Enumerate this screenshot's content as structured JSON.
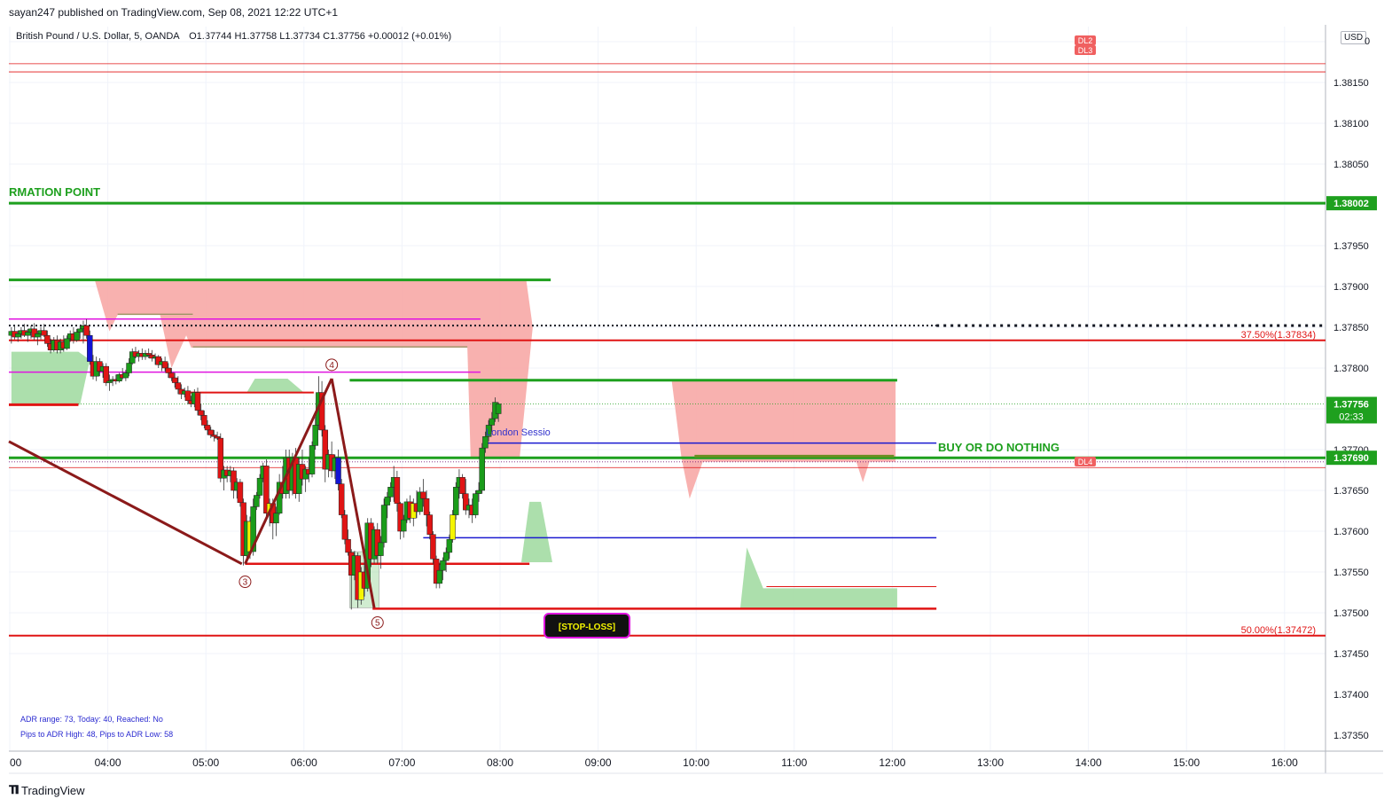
{
  "header": {
    "published": "sayan247 published on TradingView.com, Sep 08, 2021 12:22 UTC+1",
    "symbol": "British Pound / U.S. Dollar, 5, OANDA",
    "ohlc": "O1.37744  H1.37758  L1.37734  C1.37756  +0.00012 (+0.01%)"
  },
  "currency_badge": "USD",
  "footer": {
    "brand": "TradingView"
  },
  "adr": {
    "line1": "ADR range: 73, Today: 40, Reached: No",
    "line2": "Pips to ADR High: 48, Pips to ADR Low: 58"
  },
  "colors": {
    "up": "#1a9c1a",
    "down": "#e01414",
    "doji_yellow": "#f5f500",
    "doji_blue": "#1414d4",
    "green_line": "#1ea01e",
    "red_line": "#e01414",
    "pink_zone": "#f7a9a6",
    "green_zone": "#a3dba3",
    "magenta": "#e014e0",
    "blue_line": "#1a1ad0",
    "dark_red": "#8b1a1a"
  },
  "chart_data": {
    "type": "candlestick",
    "ylim": [
      1.3732,
      1.383
    ],
    "y_ticks": [
      "1.38150",
      "1.38100",
      "1.38050",
      "1.37950",
      "1.37900",
      "1.37850",
      "1.37800",
      "1.37700",
      "1.37650",
      "1.37600",
      "1.37550",
      "1.37500",
      "1.37450",
      "1.37400",
      "1.37350"
    ],
    "x_ticks": [
      {
        "label": "00",
        "t": 180
      },
      {
        "label": "04:00",
        "t": 240
      },
      {
        "label": "05:00",
        "t": 300
      },
      {
        "label": "06:00",
        "t": 360
      },
      {
        "label": "07:00",
        "t": 420
      },
      {
        "label": "08:00",
        "t": 480
      },
      {
        "label": "09:00",
        "t": 540
      },
      {
        "label": "10:00",
        "t": 600
      },
      {
        "label": "11:00",
        "t": 660
      },
      {
        "label": "12:00",
        "t": 720
      },
      {
        "label": "13:00",
        "t": 780
      },
      {
        "label": "14:00",
        "t": 840
      },
      {
        "label": "15:00",
        "t": 900
      },
      {
        "label": "16:00",
        "t": 960
      }
    ],
    "price_labels": [
      {
        "text": "1.38002",
        "price": 1.38002,
        "bg": "#1ea01e",
        "fg": "#ffffff"
      },
      {
        "text": "1.37756",
        "sub": "02:33",
        "price": 1.37756,
        "bg": "#1ea01e",
        "fg": "#ffffff"
      },
      {
        "text": "1.37690",
        "price": 1.3769,
        "bg": "#1ea01e",
        "fg": "#ffffff"
      }
    ],
    "annotations": {
      "confirmation": "RMATION POINT",
      "buy": "BUY OR DO NOTHING",
      "stoploss": "[STOP-LOSS]",
      "london": "London Sessio",
      "fib_375": "37.50%(1.37834)",
      "fib_50": "50.00%(1.37472)",
      "wave3": "3",
      "wave4": "4",
      "wave5": "5",
      "dl2": "DL2",
      "dl3": "DL3",
      "dl4": "DL4",
      "top_partial": "0"
    },
    "candles": [
      [
        181,
        1.3784,
        1.3785,
        1.3783,
        1.37845
      ],
      [
        183,
        1.37845,
        1.37852,
        1.37835,
        1.37838
      ],
      [
        185,
        1.37838,
        1.37846,
        1.37832,
        1.37842
      ],
      [
        187,
        1.37842,
        1.3785,
        1.37836,
        1.37846
      ],
      [
        189,
        1.37846,
        1.37854,
        1.37838,
        1.3784
      ],
      [
        191,
        1.3784,
        1.37848,
        1.37832,
        1.37844
      ],
      [
        193,
        1.37844,
        1.37852,
        1.37836,
        1.37848
      ],
      [
        195,
        1.37848,
        1.37855,
        1.37834,
        1.37838
      ],
      [
        197,
        1.37838,
        1.37846,
        1.37828,
        1.37842
      ],
      [
        199,
        1.37842,
        1.3785,
        1.37835,
        1.37846
      ],
      [
        201,
        1.37846,
        1.37854,
        1.37838,
        1.3784
      ],
      [
        203,
        1.3784,
        1.37846,
        1.37826,
        1.3783
      ],
      [
        205,
        1.3783,
        1.37836,
        1.37818,
        1.37822
      ],
      [
        207,
        1.37822,
        1.37838,
        1.3782,
        1.37834
      ],
      [
        209,
        1.37834,
        1.3784,
        1.37818,
        1.37822
      ],
      [
        211,
        1.37822,
        1.37836,
        1.37818,
        1.37832
      ],
      [
        213,
        1.37832,
        1.3784,
        1.3782,
        1.37824
      ],
      [
        215,
        1.37824,
        1.3784,
        1.37822,
        1.37836
      ],
      [
        217,
        1.37836,
        1.37846,
        1.37832,
        1.37842
      ],
      [
        219,
        1.37842,
        1.3785,
        1.3783,
        1.37834
      ],
      [
        221,
        1.37834,
        1.37848,
        1.37832,
        1.37844
      ],
      [
        223,
        1.37844,
        1.37852,
        1.37836,
        1.37848
      ],
      [
        225,
        1.37848,
        1.37858,
        1.3783,
        1.37852
      ],
      [
        227,
        1.37852,
        1.3786,
        1.37836,
        1.3784
      ],
      [
        229,
        1.3784,
        1.37846,
        1.37804,
        1.37808
      ],
      [
        231,
        1.37808,
        1.37816,
        1.37786,
        1.3779
      ],
      [
        233,
        1.3779,
        1.37814,
        1.37784,
        1.37808
      ],
      [
        235,
        1.37808,
        1.37812,
        1.3779,
        1.37796
      ],
      [
        237,
        1.37796,
        1.37806,
        1.37788,
        1.37802
      ],
      [
        239,
        1.37802,
        1.37806,
        1.37778,
        1.37782
      ],
      [
        241,
        1.37782,
        1.37792,
        1.37772,
        1.37784
      ],
      [
        243,
        1.37784,
        1.3779,
        1.37778,
        1.37786
      ],
      [
        245,
        1.37786,
        1.37792,
        1.3778,
        1.37784
      ],
      [
        247,
        1.37784,
        1.37794,
        1.37782,
        1.37792
      ],
      [
        249,
        1.37792,
        1.378,
        1.37786,
        1.37788
      ],
      [
        251,
        1.37788,
        1.37798,
        1.37784,
        1.37794
      ],
      [
        253,
        1.37794,
        1.37812,
        1.3779,
        1.37806
      ],
      [
        255,
        1.37806,
        1.37824,
        1.37804,
        1.3782
      ],
      [
        257,
        1.3782,
        1.37826,
        1.37812,
        1.37814
      ],
      [
        259,
        1.37814,
        1.37822,
        1.37808,
        1.37818
      ],
      [
        261,
        1.37818,
        1.37824,
        1.3781,
        1.37814
      ],
      [
        263,
        1.37814,
        1.37822,
        1.3781,
        1.37818
      ],
      [
        265,
        1.37818,
        1.37824,
        1.37812,
        1.37816
      ],
      [
        267,
        1.37816,
        1.37822,
        1.37808,
        1.37812
      ],
      [
        269,
        1.37812,
        1.37818,
        1.37804,
        1.37814
      ],
      [
        271,
        1.37814,
        1.37816,
        1.378,
        1.37804
      ],
      [
        273,
        1.37804,
        1.37812,
        1.37796,
        1.37808
      ],
      [
        275,
        1.37808,
        1.37814,
        1.37796,
        1.378
      ],
      [
        277,
        1.378,
        1.37806,
        1.37788,
        1.37794
      ],
      [
        279,
        1.37794,
        1.378,
        1.37784,
        1.37788
      ],
      [
        281,
        1.37788,
        1.37794,
        1.37776,
        1.37782
      ],
      [
        283,
        1.37782,
        1.3779,
        1.37768,
        1.37774
      ],
      [
        285,
        1.37774,
        1.3778,
        1.37762,
        1.37768
      ],
      [
        287,
        1.37768,
        1.37776,
        1.37764,
        1.37772
      ],
      [
        289,
        1.37772,
        1.37778,
        1.37756,
        1.3776
      ],
      [
        291,
        1.3776,
        1.37766,
        1.37752,
        1.37756
      ],
      [
        293,
        1.37756,
        1.37774,
        1.37752,
        1.3777
      ],
      [
        295,
        1.3777,
        1.37776,
        1.37742,
        1.37748
      ],
      [
        297,
        1.37748,
        1.37756,
        1.37736,
        1.37742
      ],
      [
        299,
        1.37742,
        1.37748,
        1.37726,
        1.3773
      ],
      [
        301,
        1.3773,
        1.37736,
        1.37718,
        1.37724
      ],
      [
        303,
        1.37724,
        1.37728,
        1.37714,
        1.37718
      ],
      [
        305,
        1.37718,
        1.37724,
        1.3771,
        1.37716
      ],
      [
        307,
        1.37716,
        1.37722,
        1.37712,
        1.37714
      ],
      [
        309,
        1.37714,
        1.3772,
        1.3766,
        1.37665
      ],
      [
        311,
        1.37665,
        1.3768,
        1.3765,
        1.37675
      ],
      [
        313,
        1.37675,
        1.3768,
        1.3766,
        1.37668
      ],
      [
        315,
        1.37668,
        1.3768,
        1.3766,
        1.37674
      ],
      [
        317,
        1.37674,
        1.37678,
        1.3764,
        1.3765
      ],
      [
        319,
        1.3765,
        1.37665,
        1.3764,
        1.3766
      ],
      [
        321,
        1.3766,
        1.37664,
        1.3763,
        1.37635
      ],
      [
        323,
        1.37635,
        1.3764,
        1.37558,
        1.3757
      ],
      [
        325,
        1.3757,
        1.3762,
        1.3756,
        1.37612
      ],
      [
        327,
        1.37612,
        1.37618,
        1.37566,
        1.37575
      ],
      [
        329,
        1.37575,
        1.3764,
        1.3757,
        1.3763
      ],
      [
        331,
        1.3763,
        1.37648,
        1.37626,
        1.37644
      ],
      [
        333,
        1.37644,
        1.3767,
        1.3764,
        1.37665
      ],
      [
        335,
        1.37665,
        1.37684,
        1.3766,
        1.3768
      ],
      [
        337,
        1.3768,
        1.37688,
        1.37616,
        1.37622
      ],
      [
        339,
        1.37622,
        1.3764,
        1.37606,
        1.37634
      ],
      [
        341,
        1.37634,
        1.3764,
        1.3759,
        1.3761
      ],
      [
        343,
        1.3761,
        1.3763,
        1.37594,
        1.37622
      ],
      [
        345,
        1.37622,
        1.3767,
        1.3762,
        1.3766
      ],
      [
        347,
        1.3766,
        1.3768,
        1.3764,
        1.37646
      ],
      [
        349,
        1.37646,
        1.377,
        1.3764,
        1.3769
      ],
      [
        351,
        1.3769,
        1.377,
        1.3764,
        1.3765
      ],
      [
        353,
        1.3765,
        1.37696,
        1.37644,
        1.3769
      ],
      [
        355,
        1.3769,
        1.37702,
        1.3764,
        1.37646
      ],
      [
        357,
        1.37646,
        1.3769,
        1.37636,
        1.37682
      ],
      [
        359,
        1.37682,
        1.377,
        1.37656,
        1.37664
      ],
      [
        361,
        1.37664,
        1.3768,
        1.37648,
        1.37676
      ],
      [
        363,
        1.37676,
        1.3769,
        1.3766,
        1.3767
      ],
      [
        365,
        1.3767,
        1.3771,
        1.37666,
        1.37705
      ],
      [
        367,
        1.37705,
        1.3774,
        1.377,
        1.3773
      ],
      [
        369,
        1.3773,
        1.3779,
        1.37724,
        1.3777
      ],
      [
        371,
        1.3777,
        1.37784,
        1.37716,
        1.37724
      ],
      [
        373,
        1.37724,
        1.3773,
        1.3766,
        1.37676
      ],
      [
        375,
        1.37676,
        1.377,
        1.37666,
        1.37694
      ],
      [
        377,
        1.37694,
        1.3771,
        1.37666,
        1.37674
      ],
      [
        379,
        1.37674,
        1.37694,
        1.37664,
        1.3769
      ],
      [
        381,
        1.3769,
        1.377,
        1.3765,
        1.37658
      ],
      [
        383,
        1.37658,
        1.37664,
        1.37616,
        1.3762
      ],
      [
        385,
        1.3762,
        1.37626,
        1.37584,
        1.3759
      ],
      [
        387,
        1.3759,
        1.37602,
        1.3757,
        1.37574
      ],
      [
        389,
        1.37574,
        1.37578,
        1.37504,
        1.37546
      ],
      [
        391,
        1.37546,
        1.37576,
        1.3754,
        1.3757
      ],
      [
        393,
        1.3757,
        1.37574,
        1.37506,
        1.37516
      ],
      [
        395,
        1.37516,
        1.37556,
        1.3751,
        1.3755
      ],
      [
        397,
        1.3755,
        1.37566,
        1.3752,
        1.3753
      ],
      [
        399,
        1.3753,
        1.37616,
        1.37526,
        1.3761
      ],
      [
        401,
        1.3761,
        1.37616,
        1.37556,
        1.37566
      ],
      [
        403,
        1.37566,
        1.37606,
        1.3756,
        1.37602
      ],
      [
        405,
        1.37602,
        1.3761,
        1.3756,
        1.3757
      ],
      [
        407,
        1.3757,
        1.37594,
        1.37554,
        1.37586
      ],
      [
        409,
        1.37586,
        1.3764,
        1.3758,
        1.37632
      ],
      [
        411,
        1.37632,
        1.37648,
        1.37616,
        1.37642
      ],
      [
        413,
        1.37642,
        1.3766,
        1.37636,
        1.37654
      ],
      [
        415,
        1.37654,
        1.3768,
        1.37636,
        1.37666
      ],
      [
        417,
        1.37666,
        1.37674,
        1.37624,
        1.37634
      ],
      [
        419,
        1.37634,
        1.37636,
        1.3759,
        1.376
      ],
      [
        421,
        1.376,
        1.3762,
        1.37592,
        1.37614
      ],
      [
        423,
        1.37614,
        1.3764,
        1.3761,
        1.37636
      ],
      [
        425,
        1.37636,
        1.37644,
        1.3761,
        1.37616
      ],
      [
        427,
        1.37616,
        1.3764,
        1.37606,
        1.37634
      ],
      [
        429,
        1.37634,
        1.3765,
        1.37616,
        1.37624
      ],
      [
        431,
        1.37624,
        1.37654,
        1.3762,
        1.37648
      ],
      [
        433,
        1.37648,
        1.37664,
        1.3763,
        1.3764
      ],
      [
        435,
        1.3764,
        1.3765,
        1.37606,
        1.3762
      ],
      [
        437,
        1.3762,
        1.37624,
        1.3759,
        1.37596
      ],
      [
        439,
        1.37596,
        1.376,
        1.3756,
        1.37566
      ],
      [
        441,
        1.37566,
        1.3757,
        1.3753,
        1.37536
      ],
      [
        443,
        1.37536,
        1.3756,
        1.3753,
        1.37552
      ],
      [
        445,
        1.37552,
        1.37568,
        1.3754,
        1.37564
      ],
      [
        447,
        1.37564,
        1.3758,
        1.3755,
        1.37574
      ],
      [
        449,
        1.37574,
        1.37596,
        1.37566,
        1.3759
      ],
      [
        451,
        1.3759,
        1.37626,
        1.37586,
        1.3762
      ],
      [
        453,
        1.3762,
        1.3766,
        1.37614,
        1.37654
      ],
      [
        455,
        1.37654,
        1.37676,
        1.3764,
        1.37666
      ],
      [
        457,
        1.37666,
        1.3767,
        1.3764,
        1.37646
      ],
      [
        459,
        1.37646,
        1.37664,
        1.3762,
        1.37626
      ],
      [
        461,
        1.37626,
        1.3764,
        1.37616,
        1.37632
      ],
      [
        463,
        1.37632,
        1.3764,
        1.3761,
        1.3762
      ],
      [
        465,
        1.3762,
        1.3765,
        1.37616,
        1.37646
      ],
      [
        467,
        1.37646,
        1.3766,
        1.37636,
        1.3765
      ],
      [
        469,
        1.3765,
        1.37708,
        1.37646,
        1.37702
      ],
      [
        471,
        1.37702,
        1.37722,
        1.37696,
        1.37716
      ],
      [
        473,
        1.37716,
        1.37736,
        1.3771,
        1.3773
      ],
      [
        475,
        1.3773,
        1.37746,
        1.37722,
        1.37738
      ],
      [
        477,
        1.37738,
        1.37764,
        1.37734,
        1.37758
      ],
      [
        479,
        1.37744,
        1.37758,
        1.37734,
        1.37756
      ]
    ]
  }
}
